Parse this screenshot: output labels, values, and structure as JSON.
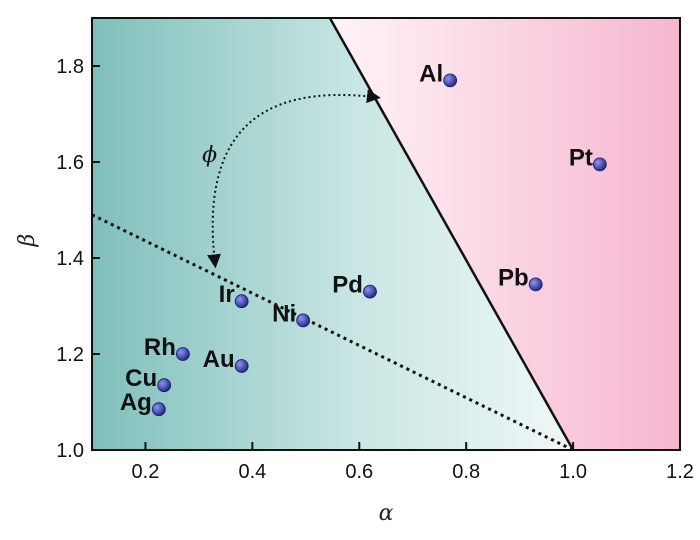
{
  "chart_data": {
    "type": "scatter",
    "title": "",
    "xlabel": "α",
    "ylabel": "β",
    "xlim": [
      0.1,
      1.2
    ],
    "ylim": [
      1.0,
      1.9
    ],
    "xticks": [
      0.2,
      0.4,
      0.6,
      0.8,
      1.0,
      1.2
    ],
    "xtick_labels": [
      "0.2",
      "0.4",
      "0.6",
      "0.8",
      "1.0",
      "1.2"
    ],
    "yticks": [
      1.0,
      1.2,
      1.4,
      1.6,
      1.8
    ],
    "ytick_labels": [
      "1.0",
      "1.2",
      "1.4",
      "1.6",
      "1.8"
    ],
    "grid": false,
    "points": [
      {
        "label": "Al",
        "x": 0.77,
        "y": 1.77
      },
      {
        "label": "Pt",
        "x": 1.05,
        "y": 1.595
      },
      {
        "label": "Pb",
        "x": 0.93,
        "y": 1.345
      },
      {
        "label": "Pd",
        "x": 0.62,
        "y": 1.33
      },
      {
        "label": "Ni",
        "x": 0.495,
        "y": 1.27
      },
      {
        "label": "Ir",
        "x": 0.38,
        "y": 1.31
      },
      {
        "label": "Au",
        "x": 0.38,
        "y": 1.175
      },
      {
        "label": "Rh",
        "x": 0.27,
        "y": 1.2
      },
      {
        "label": "Cu",
        "x": 0.235,
        "y": 1.135
      },
      {
        "label": "Ag",
        "x": 0.225,
        "y": 1.085
      }
    ],
    "lines": [
      {
        "style": "solid",
        "x": [
          0.545,
          1.0
        ],
        "y": [
          1.9,
          1.0
        ]
      },
      {
        "style": "dotted",
        "x": [
          0.1,
          1.0
        ],
        "y": [
          1.49,
          1.0
        ]
      }
    ],
    "angle_annotation": {
      "label": "ϕ",
      "from": [
        0.33,
        1.39
      ],
      "to": [
        0.63,
        1.735
      ],
      "label_at": [
        0.32,
        1.6
      ]
    },
    "regions": [
      {
        "side": "left of solid line",
        "color": "#9fd0cc"
      },
      {
        "side": "right of solid line",
        "color": "#f7c4d9"
      }
    ],
    "marker_color": "#2c2f9a"
  }
}
